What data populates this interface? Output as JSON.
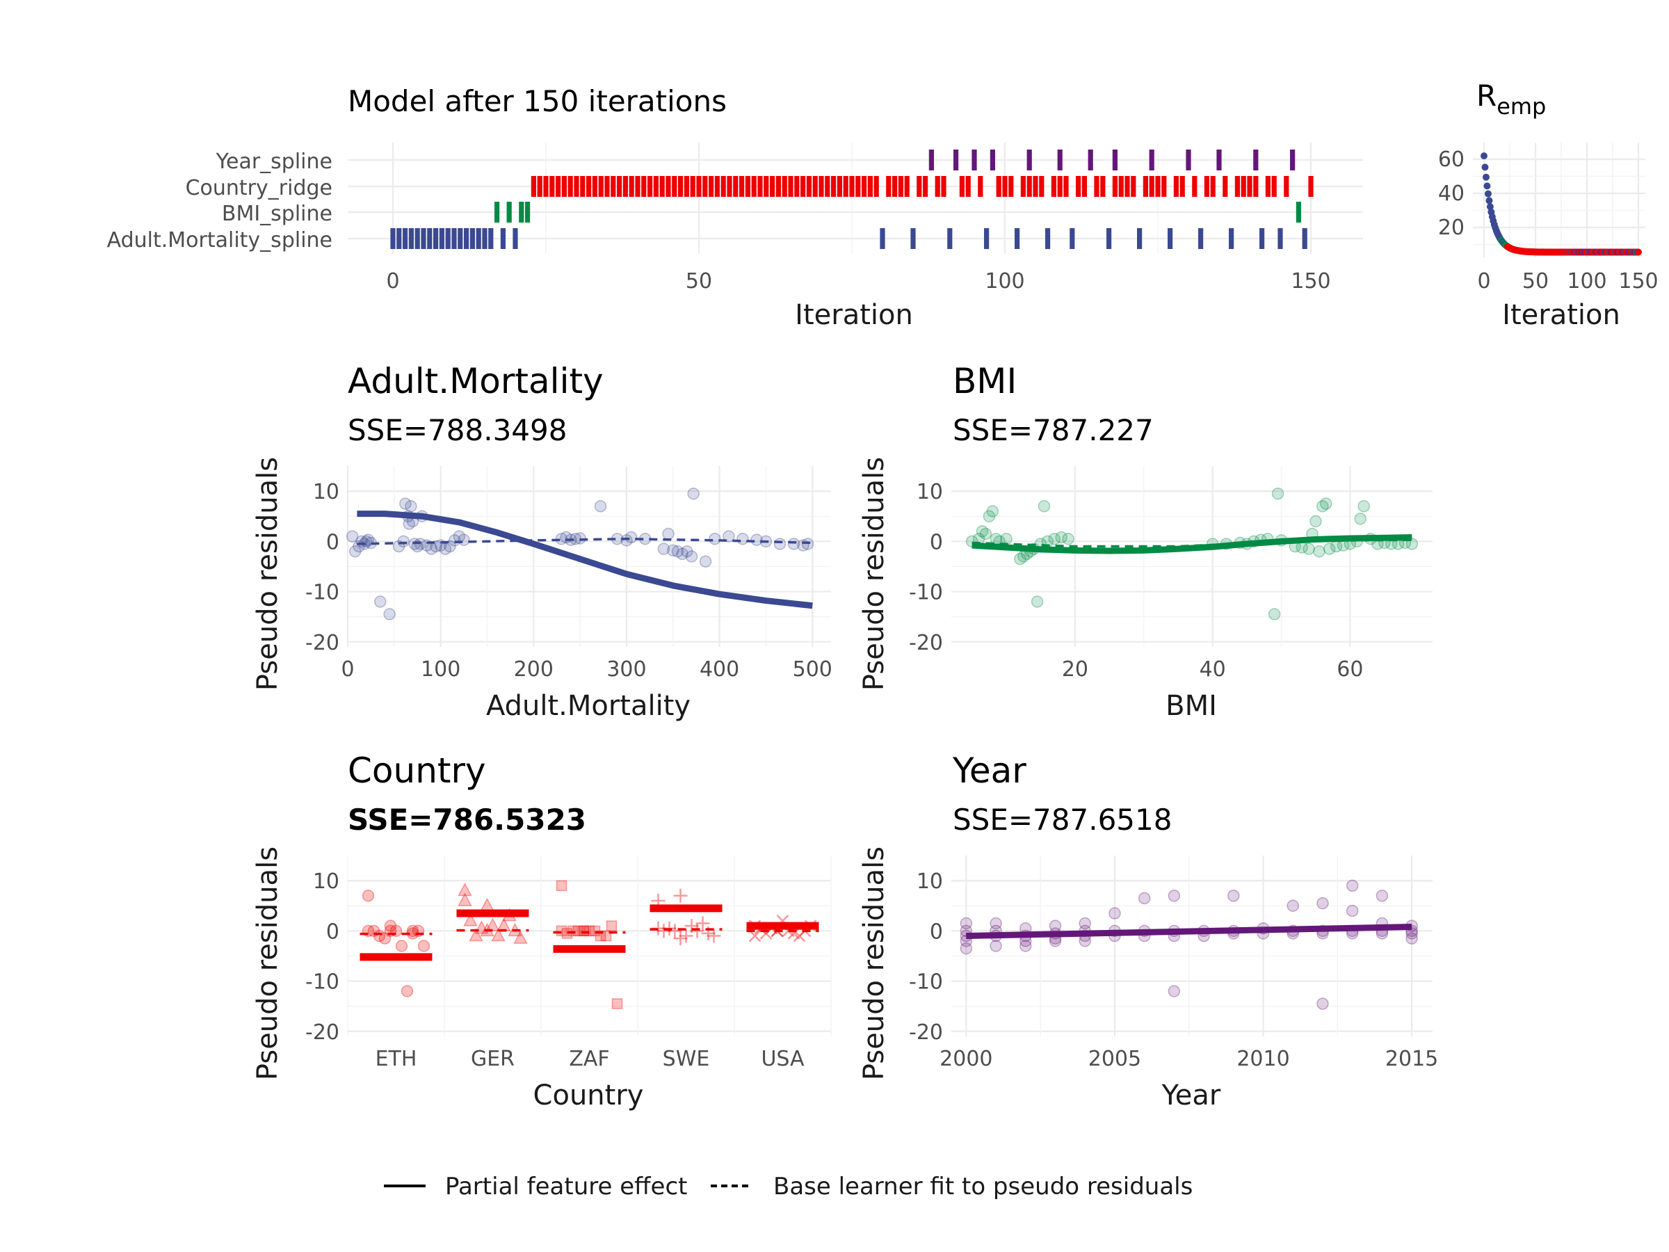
{
  "colors": {
    "adult": "#3B4992",
    "bmi": "#008B45",
    "country": "#EE0000",
    "year": "#631879"
  },
  "trace": {
    "title": "Model after 150 iterations",
    "xlabel": "Iteration",
    "learners": [
      "Year_spline",
      "Country_ridge",
      "BMI_spline",
      "Adult.Mortality_spline"
    ],
    "x_ticks": [
      "0",
      "50",
      "100",
      "150"
    ]
  },
  "risk": {
    "title": "R",
    "title_sub": "emp",
    "xlabel": "Iteration",
    "x_ticks": [
      "0",
      "50",
      "100",
      "150"
    ],
    "y_ticks": [
      "20",
      "40",
      "60"
    ]
  },
  "panels": {
    "adult": {
      "title": "Adult.Mortality",
      "sse": "SSE=788.3498",
      "xlabel": "Adult.Mortality",
      "ylabel": "Pseudo residuals"
    },
    "bmi": {
      "title": "BMI",
      "sse": "SSE=787.227",
      "xlabel": "BMI",
      "ylabel": "Pseudo residuals"
    },
    "country": {
      "title": "Country",
      "sse": "SSE=786.5323",
      "xlabel": "Country",
      "ylabel": "Pseudo residuals"
    },
    "year": {
      "title": "Year",
      "sse": "SSE=787.6518",
      "xlabel": "Year",
      "ylabel": "Pseudo residuals"
    }
  },
  "legend": {
    "solid": "Partial feature effect",
    "dashed": "Base learner fit to pseudo residuals"
  },
  "chart_data": [
    {
      "type": "scatter",
      "name": "trace",
      "title": "Model after 150 iterations",
      "xlabel": "Iteration",
      "categories": [
        "Adult.Mortality_spline",
        "BMI_spline",
        "Country_ridge",
        "Year_spline"
      ],
      "xlim": [
        0,
        150
      ],
      "selections": {
        "Adult.Mortality_spline": [
          0,
          1,
          2,
          3,
          4,
          5,
          6,
          7,
          8,
          9,
          10,
          11,
          12,
          13,
          14,
          15,
          16,
          18,
          20,
          80,
          85,
          91,
          97,
          102,
          107,
          111,
          117,
          122,
          127,
          132,
          137,
          142,
          145,
          149
        ],
        "BMI_spline": [
          17,
          19,
          21,
          22,
          148
        ],
        "Country_ridge": [
          23,
          24,
          25,
          26,
          27,
          28,
          29,
          30,
          31,
          32,
          33,
          34,
          35,
          36,
          37,
          38,
          39,
          40,
          41,
          42,
          43,
          44,
          45,
          46,
          47,
          48,
          49,
          50,
          51,
          52,
          53,
          54,
          55,
          56,
          57,
          58,
          59,
          60,
          61,
          62,
          63,
          64,
          65,
          66,
          67,
          68,
          69,
          70,
          71,
          72,
          73,
          74,
          75,
          76,
          77,
          78,
          79,
          81,
          82,
          83,
          84,
          86,
          87,
          89,
          90,
          93,
          94,
          96,
          99,
          100,
          101,
          103,
          104,
          105,
          106,
          108,
          109,
          110,
          112,
          113,
          115,
          116,
          118,
          119,
          120,
          121,
          123,
          124,
          125,
          126,
          128,
          129,
          131,
          133,
          134,
          136,
          138,
          139,
          140,
          141,
          143,
          144,
          146,
          150
        ],
        "Year_spline": [
          88,
          92,
          95,
          98,
          104,
          109,
          114,
          118,
          124,
          130,
          135,
          141,
          147
        ]
      }
    },
    {
      "type": "scatter",
      "name": "risk",
      "title": "R_emp",
      "xlabel": "Iteration",
      "xlim": [
        0,
        150
      ],
      "ylim": [
        5,
        65
      ],
      "curve": {
        "start": 62,
        "end": 6,
        "decay": 8,
        "floor": 5.5
      }
    },
    {
      "type": "scatter",
      "name": "adult",
      "title": "Adult.Mortality",
      "subtitle": "SSE=788.3498",
      "xlabel": "Adult.Mortality",
      "ylabel": "Pseudo residuals",
      "xlim": [
        0,
        520
      ],
      "ylim": [
        -21,
        15
      ],
      "x_ticks": [
        0,
        100,
        200,
        300,
        400,
        500
      ],
      "y_ticks": [
        -20,
        -10,
        0,
        10
      ],
      "points": [
        [
          5,
          1
        ],
        [
          8,
          -2
        ],
        [
          12,
          -1
        ],
        [
          15,
          0
        ],
        [
          18,
          -0.5
        ],
        [
          20,
          0
        ],
        [
          22,
          0.3
        ],
        [
          25,
          -0.3
        ],
        [
          35,
          -12
        ],
        [
          45,
          -14.5
        ],
        [
          55,
          -1
        ],
        [
          60,
          0
        ],
        [
          62,
          7.5
        ],
        [
          65,
          5
        ],
        [
          66,
          3.5
        ],
        [
          68,
          7
        ],
        [
          70,
          4
        ],
        [
          72,
          -0.5
        ],
        [
          75,
          -1
        ],
        [
          78,
          -0.5
        ],
        [
          80,
          5
        ],
        [
          85,
          -0.8
        ],
        [
          90,
          -1.5
        ],
        [
          95,
          -1
        ],
        [
          100,
          -0.8
        ],
        [
          105,
          -1.5
        ],
        [
          110,
          -1
        ],
        [
          115,
          0.2
        ],
        [
          120,
          1
        ],
        [
          125,
          0.3
        ],
        [
          230,
          0.5
        ],
        [
          235,
          0.8
        ],
        [
          240,
          0.3
        ],
        [
          245,
          0.5
        ],
        [
          250,
          0.6
        ],
        [
          272,
          7
        ],
        [
          290,
          0.5
        ],
        [
          300,
          0.2
        ],
        [
          305,
          0.8
        ],
        [
          320,
          0.5
        ],
        [
          340,
          -1.5
        ],
        [
          345,
          1.5
        ],
        [
          350,
          -1.8
        ],
        [
          355,
          -2
        ],
        [
          360,
          -2.5
        ],
        [
          365,
          -2
        ],
        [
          370,
          -3
        ],
        [
          372,
          9.5
        ],
        [
          385,
          -4
        ],
        [
          395,
          0.5
        ],
        [
          410,
          1
        ],
        [
          425,
          0.5
        ],
        [
          440,
          0.3
        ],
        [
          450,
          0
        ],
        [
          465,
          -0.5
        ],
        [
          480,
          -0.5
        ],
        [
          490,
          -0.8
        ],
        [
          495,
          -0.5
        ]
      ],
      "effect": [
        [
          10,
          5.5
        ],
        [
          40,
          5.5
        ],
        [
          80,
          5
        ],
        [
          120,
          3.8
        ],
        [
          160,
          1.8
        ],
        [
          200,
          -0.5
        ],
        [
          250,
          -3.5
        ],
        [
          300,
          -6.5
        ],
        [
          350,
          -8.8
        ],
        [
          400,
          -10.5
        ],
        [
          450,
          -11.8
        ],
        [
          500,
          -12.8
        ]
      ],
      "fit": [
        [
          10,
          -0.5
        ],
        [
          100,
          -0.2
        ],
        [
          200,
          0.2
        ],
        [
          300,
          0.5
        ],
        [
          400,
          0.2
        ],
        [
          500,
          -0.3
        ]
      ]
    },
    {
      "type": "scatter",
      "name": "bmi",
      "title": "BMI",
      "subtitle": "SSE=787.227",
      "xlabel": "BMI",
      "ylabel": "Pseudo residuals",
      "xlim": [
        2,
        72
      ],
      "ylim": [
        -21,
        15
      ],
      "x_ticks": [
        20,
        40,
        60
      ],
      "y_ticks": [
        -20,
        -10,
        0,
        10
      ],
      "points": [
        [
          5,
          0
        ],
        [
          6,
          0.5
        ],
        [
          6.5,
          2
        ],
        [
          7,
          1.5
        ],
        [
          7.5,
          5
        ],
        [
          8,
          6
        ],
        [
          8.5,
          0.5
        ],
        [
          9,
          0
        ],
        [
          10,
          0.5
        ],
        [
          12,
          -3.5
        ],
        [
          12.5,
          -3
        ],
        [
          13,
          -2.5
        ],
        [
          13.5,
          -2
        ],
        [
          14,
          -1.5
        ],
        [
          14.5,
          -12
        ],
        [
          15,
          -0.5
        ],
        [
          15.5,
          7
        ],
        [
          16,
          0
        ],
        [
          17,
          0.5
        ],
        [
          18,
          0.8
        ],
        [
          19,
          0.5
        ],
        [
          40,
          -0.5
        ],
        [
          42,
          -0.5
        ],
        [
          44,
          -0.3
        ],
        [
          45,
          -0.5
        ],
        [
          46,
          0
        ],
        [
          47,
          0.3
        ],
        [
          48,
          0.5
        ],
        [
          49,
          -14.5
        ],
        [
          49.5,
          9.5
        ],
        [
          50,
          0.2
        ],
        [
          52,
          -1
        ],
        [
          53,
          -1.2
        ],
        [
          54,
          -1.5
        ],
        [
          54.5,
          1.5
        ],
        [
          55,
          4
        ],
        [
          55.5,
          -2
        ],
        [
          56,
          7
        ],
        [
          56.5,
          7.5
        ],
        [
          57,
          -1.5
        ],
        [
          58,
          -1
        ],
        [
          59,
          -0.8
        ],
        [
          60,
          -0.5
        ],
        [
          61,
          0
        ],
        [
          61.5,
          4.5
        ],
        [
          62,
          7
        ],
        [
          63,
          0.5
        ],
        [
          64,
          -0.5
        ],
        [
          65,
          -0.3
        ],
        [
          66,
          -0.5
        ],
        [
          67,
          -0.5
        ],
        [
          68,
          -0.3
        ],
        [
          69,
          -0.5
        ]
      ],
      "effect": [
        [
          5,
          -0.8
        ],
        [
          10,
          -1.2
        ],
        [
          15,
          -1.6
        ],
        [
          20,
          -1.8
        ],
        [
          25,
          -1.9
        ],
        [
          30,
          -1.8
        ],
        [
          35,
          -1.5
        ],
        [
          40,
          -1.1
        ],
        [
          45,
          -0.5
        ],
        [
          50,
          0
        ],
        [
          55,
          0.4
        ],
        [
          60,
          0.6
        ],
        [
          65,
          0.7
        ],
        [
          69,
          0.8
        ]
      ],
      "fit": [
        [
          5,
          -0.3
        ],
        [
          20,
          -1.0
        ],
        [
          35,
          -1.0
        ],
        [
          50,
          -0.1
        ],
        [
          60,
          0.2
        ],
        [
          69,
          0.3
        ]
      ]
    },
    {
      "type": "scatter",
      "name": "country",
      "title": "Country",
      "subtitle": "SSE=786.5323",
      "xlabel": "Country",
      "ylabel": "Pseudo residuals",
      "categories": [
        "ETH",
        "GER",
        "ZAF",
        "SWE",
        "USA"
      ],
      "ylim": [
        -21,
        15
      ],
      "y_ticks": [
        -20,
        -10,
        0,
        10
      ],
      "effect": [
        -5.2,
        3.5,
        -3.6,
        4.5,
        1
      ],
      "fit": [
        -0.6,
        0.1,
        -0.3,
        0.3,
        0
      ],
      "points": {
        "ETH": [
          7,
          0,
          0,
          0,
          0,
          0,
          -1,
          -3,
          -3,
          -1.5,
          -12,
          0,
          1,
          -0.5
        ],
        "GER": [
          8,
          5,
          3,
          2,
          1,
          0,
          -1,
          -1,
          -1.5,
          0.5,
          1,
          6,
          0
        ],
        "ZAF": [
          9,
          0,
          -1,
          -0.5,
          0,
          1,
          0,
          0,
          -14.5,
          0,
          -1,
          0,
          0
        ],
        "SWE": [
          6,
          7,
          1.5,
          0,
          -1,
          -0.5,
          0.5,
          1,
          -1,
          0,
          0,
          0.5,
          -1.5
        ],
        "USA": [
          1,
          0,
          -1,
          0.5,
          2,
          0,
          -0.5,
          0,
          1,
          0.5,
          -0.5,
          -1,
          0
        ]
      }
    },
    {
      "type": "scatter",
      "name": "year",
      "title": "Year",
      "subtitle": "SSE=787.6518",
      "xlabel": "Year",
      "ylabel": "Pseudo residuals",
      "xlim": [
        1999.5,
        2015.7
      ],
      "ylim": [
        -21,
        15
      ],
      "x_ticks": [
        2000,
        2005,
        2010,
        2015
      ],
      "y_ticks": [
        -20,
        -10,
        0,
        10
      ],
      "points": [
        [
          2000,
          1.5
        ],
        [
          2000,
          0
        ],
        [
          2000,
          -1
        ],
        [
          2000,
          -2
        ],
        [
          2000,
          -3.5
        ],
        [
          2001,
          1.5
        ],
        [
          2001,
          0
        ],
        [
          2001,
          -1
        ],
        [
          2001,
          -3
        ],
        [
          2002,
          0.5
        ],
        [
          2002,
          -1
        ],
        [
          2002,
          -2
        ],
        [
          2002,
          -3
        ],
        [
          2003,
          1
        ],
        [
          2003,
          -0.5
        ],
        [
          2003,
          -1.5
        ],
        [
          2003,
          -2
        ],
        [
          2004,
          1.5
        ],
        [
          2004,
          0
        ],
        [
          2004,
          -1
        ],
        [
          2004,
          -2
        ],
        [
          2005,
          3.5
        ],
        [
          2005,
          0
        ],
        [
          2005,
          -1
        ],
        [
          2006,
          6.5
        ],
        [
          2006,
          0
        ],
        [
          2006,
          -1
        ],
        [
          2007,
          7
        ],
        [
          2007,
          0
        ],
        [
          2007,
          -1
        ],
        [
          2007,
          -12
        ],
        [
          2008,
          0
        ],
        [
          2008,
          -1
        ],
        [
          2009,
          7
        ],
        [
          2009,
          0
        ],
        [
          2009,
          -0.5
        ],
        [
          2010,
          0.5
        ],
        [
          2010,
          -0.5
        ],
        [
          2011,
          5
        ],
        [
          2011,
          0
        ],
        [
          2011,
          -0.5
        ],
        [
          2012,
          5.5
        ],
        [
          2012,
          0
        ],
        [
          2012,
          -0.5
        ],
        [
          2012,
          -14.5
        ],
        [
          2013,
          9
        ],
        [
          2013,
          4
        ],
        [
          2013,
          0
        ],
        [
          2013,
          -0.5
        ],
        [
          2014,
          7
        ],
        [
          2014,
          1.5
        ],
        [
          2014,
          0
        ],
        [
          2014,
          -0.5
        ],
        [
          2015,
          1
        ],
        [
          2015,
          0
        ],
        [
          2015,
          -0.5
        ],
        [
          2015,
          -1.5
        ]
      ],
      "effect": [
        [
          2000,
          -1
        ],
        [
          2015,
          0.8
        ]
      ],
      "fit": [
        [
          2000,
          -0.8
        ],
        [
          2015,
          0.6
        ]
      ]
    }
  ]
}
